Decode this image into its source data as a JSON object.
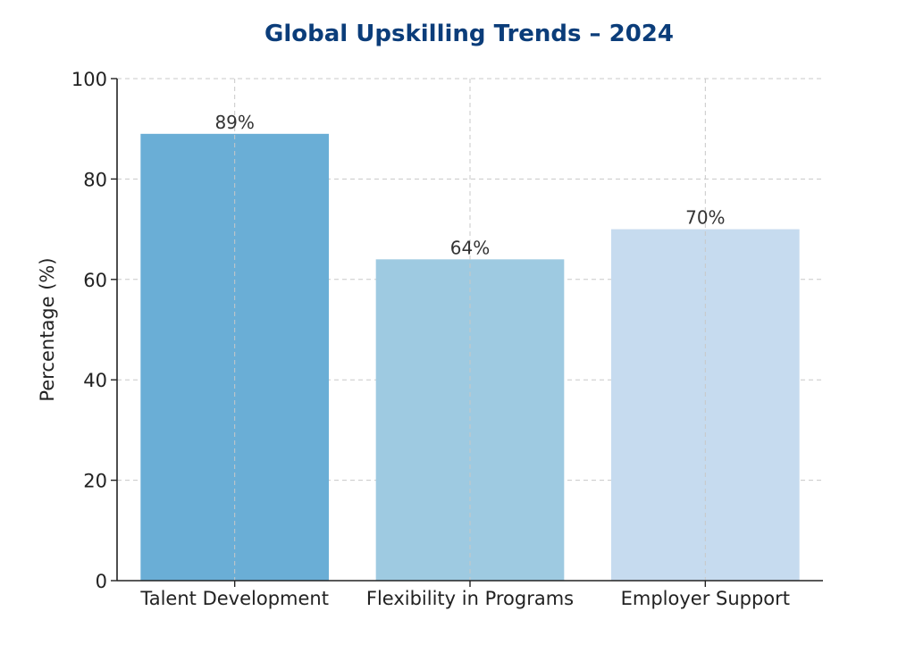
{
  "chart_data": {
    "type": "bar",
    "title": "Global Upskilling Trends – 2024",
    "xlabel": "",
    "ylabel": "Percentage (%)",
    "categories": [
      "Talent Development",
      "Flexibility in Programs",
      "Employer Support"
    ],
    "values": [
      89,
      64,
      70
    ],
    "data_labels": [
      "89%",
      "64%",
      "70%"
    ],
    "bar_colors": [
      "#6aaed6",
      "#9ecae1",
      "#c6dbef"
    ],
    "title_color": "#0b3d7a",
    "ylim": [
      0,
      100
    ],
    "yticks": [
      0,
      20,
      40,
      60,
      80,
      100
    ],
    "grid": true,
    "legend": "none"
  }
}
